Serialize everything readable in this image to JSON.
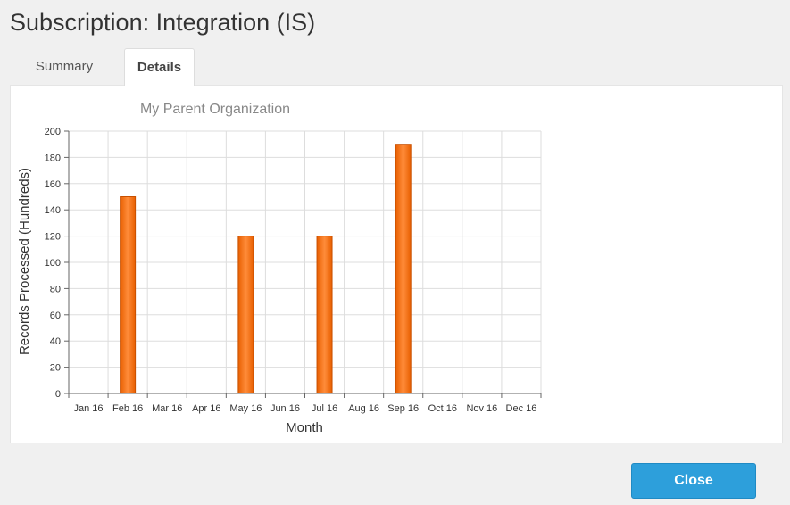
{
  "page": {
    "title": "Subscription: Integration (IS)"
  },
  "tabs": [
    {
      "label": "Summary",
      "active": false
    },
    {
      "label": "Details",
      "active": true
    }
  ],
  "footer": {
    "close_label": "Close"
  },
  "colors": {
    "bar_fill": "#ff7f27",
    "bar_stroke": "#c85000",
    "accent_button": "#2d9fdb"
  },
  "chart_data": {
    "type": "bar",
    "title": "My Parent Organization",
    "xlabel": "Month",
    "ylabel": "Records Processed (Hundreds)",
    "categories": [
      "Jan 16",
      "Feb 16",
      "Mar 16",
      "Apr 16",
      "May 16",
      "Jun 16",
      "Jul 16",
      "Aug 16",
      "Sep 16",
      "Oct 16",
      "Nov 16",
      "Dec 16"
    ],
    "values": [
      0,
      150,
      0,
      0,
      120,
      0,
      120,
      0,
      190,
      0,
      0,
      0
    ],
    "ylim": [
      0,
      200
    ],
    "yticks": [
      0,
      20,
      40,
      60,
      80,
      100,
      120,
      140,
      160,
      180,
      200
    ],
    "grid": true,
    "legend": "none"
  }
}
